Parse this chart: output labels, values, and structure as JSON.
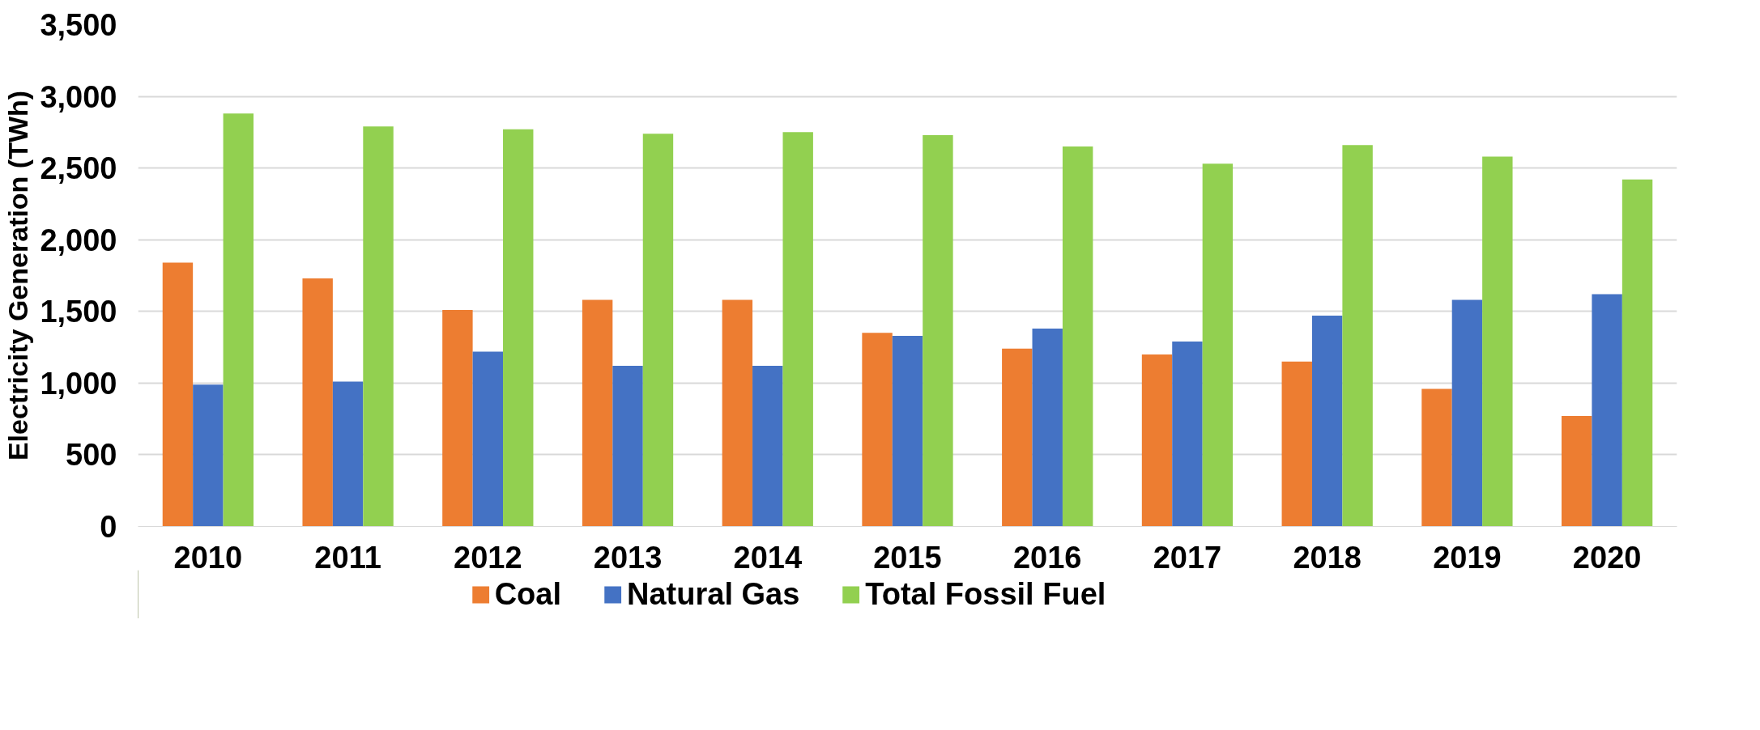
{
  "chart_data": {
    "type": "bar",
    "ylabel": "Electricity Generation (TWh)",
    "categories": [
      "2010",
      "2011",
      "2012",
      "2013",
      "2014",
      "2015",
      "2016",
      "2017",
      "2018",
      "2019",
      "2020"
    ],
    "series": [
      {
        "name": "Coal",
        "color": "#ed7d31",
        "values": [
          1840,
          1730,
          1510,
          1580,
          1580,
          1350,
          1240,
          1200,
          1150,
          960,
          770
        ]
      },
      {
        "name": "Natural Gas",
        "color": "#4472c4",
        "values": [
          990,
          1010,
          1220,
          1120,
          1120,
          1330,
          1380,
          1290,
          1470,
          1580,
          1620
        ]
      },
      {
        "name": "Total Fossil Fuel",
        "color": "#92d050",
        "values": [
          2880,
          2790,
          2770,
          2740,
          2750,
          2730,
          2650,
          2530,
          2660,
          2580,
          2420
        ]
      }
    ],
    "ylim": [
      0,
      3500
    ],
    "yticks": [
      {
        "value": 0,
        "label": "0"
      },
      {
        "value": 500,
        "label": "500"
      },
      {
        "value": 1000,
        "label": "1,000"
      },
      {
        "value": 1500,
        "label": "1,500"
      },
      {
        "value": 2000,
        "label": "2,000"
      },
      {
        "value": 2500,
        "label": "2,500"
      },
      {
        "value": 3000,
        "label": "3,000"
      },
      {
        "value": 3500,
        "label": "3,500"
      }
    ],
    "grid": "y",
    "legend": "bottom"
  }
}
